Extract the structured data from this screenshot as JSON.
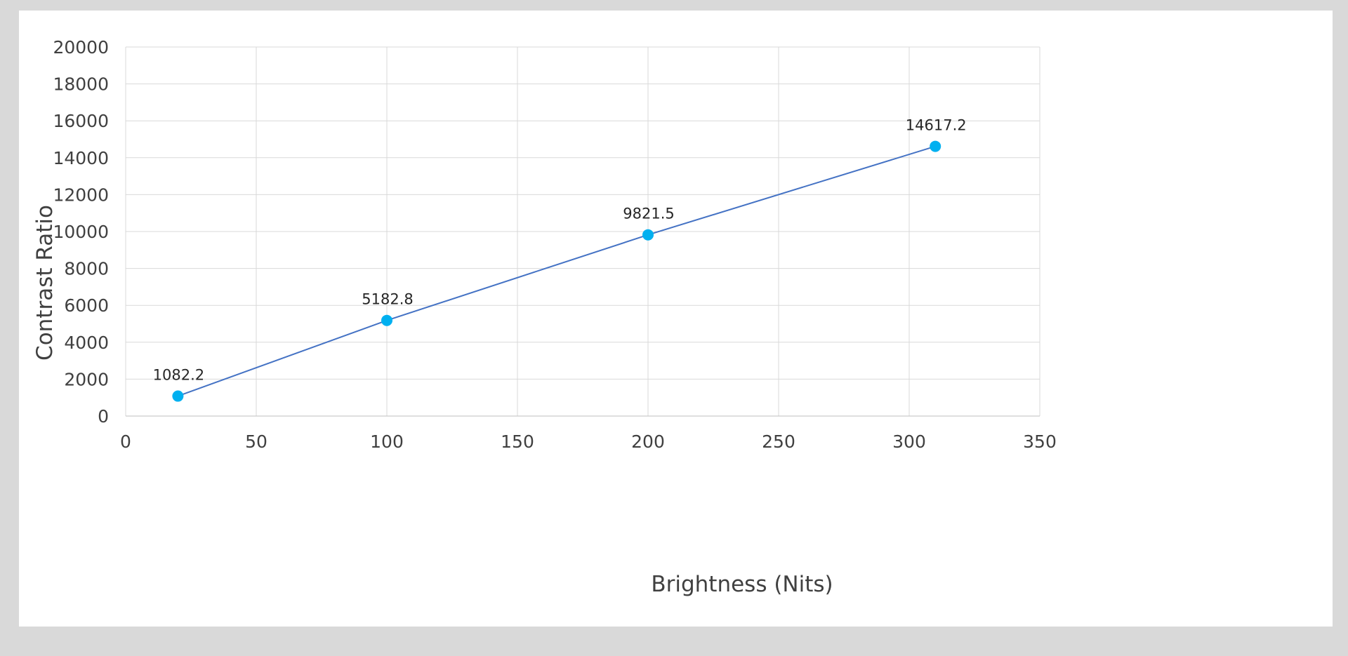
{
  "chart_data": {
    "type": "scatter",
    "title": "",
    "xlabel": "Brightness (Nits)",
    "ylabel": "Contrast Ratio",
    "xlim": [
      0,
      350
    ],
    "ylim": [
      0,
      20000
    ],
    "x_ticks": [
      0,
      50,
      100,
      150,
      200,
      250,
      300,
      350
    ],
    "y_ticks": [
      0,
      2000,
      4000,
      6000,
      8000,
      10000,
      12000,
      14000,
      16000,
      18000,
      20000
    ],
    "grid": true,
    "legend": "none",
    "series": [
      {
        "x": [
          20,
          100,
          200,
          310
        ],
        "y": [
          1082.2,
          5182.8,
          9821.5,
          14617.2
        ],
        "labels": [
          "1082.2",
          "5182.8",
          "9821.5",
          "14617.2"
        ],
        "color": "#00b0f0",
        "line_color": "#4472c4"
      }
    ]
  }
}
